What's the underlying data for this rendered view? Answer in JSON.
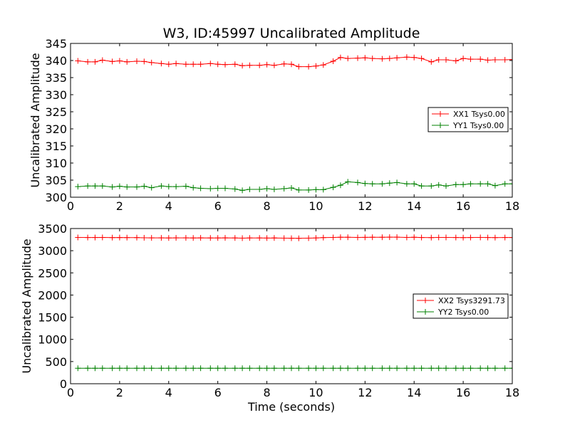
{
  "colors": {
    "red": "#ff0000",
    "green": "#008000",
    "frame": "#000000",
    "background": "#ffffff"
  },
  "chart_data": [
    {
      "type": "line",
      "title": "W3, ID:45997 Uncalibrated Amplitude",
      "xlabel": "",
      "ylabel": "Uncalibrated Amplitude",
      "xlim": [
        0,
        18
      ],
      "ylim": [
        300,
        345
      ],
      "xticks": [
        0,
        2,
        4,
        6,
        8,
        10,
        12,
        14,
        16,
        18
      ],
      "yticks": [
        300,
        305,
        310,
        315,
        320,
        325,
        330,
        335,
        340,
        345
      ],
      "grid": false,
      "legend_position": "center-right",
      "marker": "plus",
      "x": [
        0.3,
        0.7,
        1.0,
        1.3,
        1.7,
        2.0,
        2.3,
        2.7,
        3.0,
        3.3,
        3.7,
        4.0,
        4.3,
        4.7,
        5.0,
        5.3,
        5.7,
        6.0,
        6.3,
        6.7,
        7.0,
        7.3,
        7.7,
        8.0,
        8.3,
        8.7,
        9.0,
        9.3,
        9.7,
        10.0,
        10.3,
        10.7,
        11.0,
        11.3,
        11.7,
        12.0,
        12.3,
        12.7,
        13.0,
        13.3,
        13.7,
        14.0,
        14.3,
        14.7,
        15.0,
        15.3,
        15.7,
        16.0,
        16.3,
        16.7,
        17.0,
        17.3,
        17.7,
        18.0
      ],
      "series": [
        {
          "name": "XX1 Tsys0.00",
          "color": "#ff0000",
          "values": [
            339.9,
            339.6,
            339.6,
            340.1,
            339.7,
            339.9,
            339.6,
            339.8,
            339.7,
            339.4,
            339.1,
            338.9,
            339.1,
            338.9,
            338.9,
            338.9,
            339.1,
            338.9,
            338.8,
            338.9,
            338.5,
            338.6,
            338.6,
            338.8,
            338.6,
            339.0,
            338.9,
            338.2,
            338.2,
            338.4,
            338.7,
            339.8,
            340.9,
            340.6,
            340.7,
            340.8,
            340.6,
            340.5,
            340.6,
            340.8,
            341.0,
            340.9,
            340.6,
            339.6,
            340.2,
            340.2,
            339.9,
            340.6,
            340.4,
            340.4,
            340.1,
            340.2,
            340.2,
            340.3
          ]
        },
        {
          "name": "YY1 Tsys0.00",
          "color": "#008000",
          "values": [
            303.1,
            303.3,
            303.3,
            303.3,
            303.0,
            303.2,
            303.0,
            303.0,
            303.2,
            302.8,
            303.3,
            303.1,
            303.1,
            303.2,
            302.8,
            302.6,
            302.5,
            302.6,
            302.6,
            302.4,
            302.0,
            302.3,
            302.3,
            302.5,
            302.3,
            302.5,
            302.7,
            302.1,
            302.1,
            302.2,
            302.2,
            302.9,
            303.5,
            304.5,
            304.3,
            304.0,
            303.9,
            303.9,
            304.1,
            304.3,
            303.9,
            303.9,
            303.3,
            303.3,
            303.6,
            303.3,
            303.7,
            303.7,
            303.9,
            303.9,
            303.9,
            303.4,
            303.9,
            303.9
          ]
        }
      ]
    },
    {
      "type": "line",
      "title": "",
      "xlabel": "Time (seconds)",
      "ylabel": "Uncalibrated Amplitude",
      "xlim": [
        0,
        18
      ],
      "ylim": [
        0,
        3500
      ],
      "xticks": [
        0,
        2,
        4,
        6,
        8,
        10,
        12,
        14,
        16,
        18
      ],
      "yticks": [
        0,
        500,
        1000,
        1500,
        2000,
        2500,
        3000,
        3500
      ],
      "grid": false,
      "legend_position": "center-right",
      "marker": "plus",
      "x": [
        0.3,
        0.7,
        1.0,
        1.3,
        1.7,
        2.0,
        2.3,
        2.7,
        3.0,
        3.3,
        3.7,
        4.0,
        4.3,
        4.7,
        5.0,
        5.3,
        5.7,
        6.0,
        6.3,
        6.7,
        7.0,
        7.3,
        7.7,
        8.0,
        8.3,
        8.7,
        9.0,
        9.3,
        9.7,
        10.0,
        10.3,
        10.7,
        11.0,
        11.3,
        11.7,
        12.0,
        12.3,
        12.7,
        13.0,
        13.3,
        13.7,
        14.0,
        14.3,
        14.7,
        15.0,
        15.3,
        15.7,
        16.0,
        16.3,
        16.7,
        17.0,
        17.3,
        17.7,
        18.0
      ],
      "series": [
        {
          "name": "XX2 Tsys3291.73",
          "color": "#ff0000",
          "values": [
            3300,
            3298,
            3297,
            3299,
            3296,
            3297,
            3295,
            3296,
            3292,
            3290,
            3290,
            3288,
            3290,
            3289,
            3287,
            3290,
            3288,
            3287,
            3289,
            3286,
            3284,
            3286,
            3288,
            3285,
            3286,
            3284,
            3282,
            3280,
            3284,
            3286,
            3296,
            3300,
            3304,
            3302,
            3300,
            3301,
            3302,
            3303,
            3305,
            3306,
            3300,
            3302,
            3298,
            3296,
            3300,
            3299,
            3298,
            3296,
            3297,
            3299,
            3298,
            3296,
            3297,
            3298
          ]
        },
        {
          "name": "YY2 Tsys0.00",
          "color": "#008000",
          "values": [
            350,
            350,
            350,
            350,
            350,
            350,
            350,
            350,
            350,
            350,
            350,
            350,
            350,
            350,
            350,
            350,
            350,
            350,
            350,
            350,
            350,
            350,
            350,
            350,
            350,
            350,
            350,
            350,
            350,
            350,
            350,
            350,
            350,
            350,
            350,
            350,
            350,
            350,
            350,
            350,
            350,
            350,
            350,
            350,
            350,
            350,
            350,
            350,
            350,
            350,
            350,
            350,
            350,
            350
          ]
        }
      ]
    }
  ]
}
